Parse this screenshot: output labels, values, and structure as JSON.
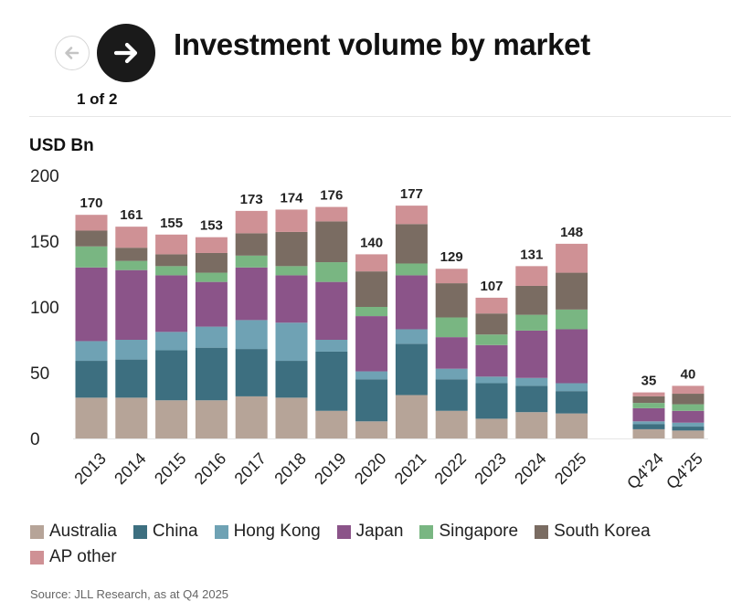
{
  "header": {
    "title": "Investment volume by market",
    "page_indicator": "1 of 2",
    "prev_icon": "arrow-left-icon",
    "next_icon": "arrow-right-icon"
  },
  "colors": {
    "australia": "#b6a498",
    "china": "#3d6f80",
    "hong_kong": "#6fa2b4",
    "japan": "#8b5489",
    "singapore": "#79b682",
    "south_korea": "#7a6c62",
    "ap_other": "#cf9195",
    "grid": "#e6e6e6",
    "axis_text": "#222222"
  },
  "chart_data": {
    "type": "bar",
    "stacked": true,
    "ylabel": "USD Bn",
    "ylim": [
      0,
      200
    ],
    "yticks": [
      0,
      50,
      100,
      150,
      200
    ],
    "grid": false,
    "legend_position": "bottom",
    "categories": [
      "2013",
      "2014",
      "2015",
      "2016",
      "2017",
      "2018",
      "2019",
      "2020",
      "2021",
      "2022",
      "2023",
      "2024",
      "2025",
      "Q4'24",
      "Q4'25"
    ],
    "totals": [
      170,
      161,
      155,
      153,
      173,
      174,
      176,
      140,
      177,
      129,
      107,
      131,
      148,
      35,
      40
    ],
    "series": [
      {
        "name": "Australia",
        "color_key": "australia",
        "values": [
          31,
          31,
          29,
          29,
          32,
          31,
          21,
          13,
          33,
          21,
          15,
          20,
          19,
          7,
          6
        ]
      },
      {
        "name": "China",
        "color_key": "china",
        "values": [
          28,
          29,
          38,
          40,
          36,
          28,
          45,
          32,
          39,
          24,
          27,
          20,
          17,
          4,
          3
        ]
      },
      {
        "name": "Hong Kong",
        "color_key": "hong_kong",
        "values": [
          15,
          15,
          14,
          16,
          22,
          29,
          9,
          6,
          11,
          8,
          5,
          6,
          6,
          2,
          3
        ]
      },
      {
        "name": "Japan",
        "color_key": "japan",
        "values": [
          56,
          53,
          43,
          34,
          40,
          36,
          44,
          42,
          41,
          24,
          24,
          36,
          41,
          10,
          9
        ]
      },
      {
        "name": "Singapore",
        "color_key": "singapore",
        "values": [
          16,
          7,
          7,
          7,
          9,
          7,
          15,
          7,
          9,
          15,
          8,
          12,
          15,
          4,
          5
        ]
      },
      {
        "name": "South Korea",
        "color_key": "south_korea",
        "values": [
          12,
          10,
          9,
          15,
          17,
          26,
          31,
          27,
          30,
          26,
          16,
          22,
          28,
          5,
          8
        ]
      },
      {
        "name": "AP other",
        "color_key": "ap_other",
        "values": [
          12,
          16,
          15,
          12,
          17,
          17,
          11,
          13,
          14,
          11,
          12,
          15,
          22,
          3,
          6
        ]
      }
    ]
  },
  "footer": {
    "source": "Source: JLL Research, as at Q4 2025"
  }
}
